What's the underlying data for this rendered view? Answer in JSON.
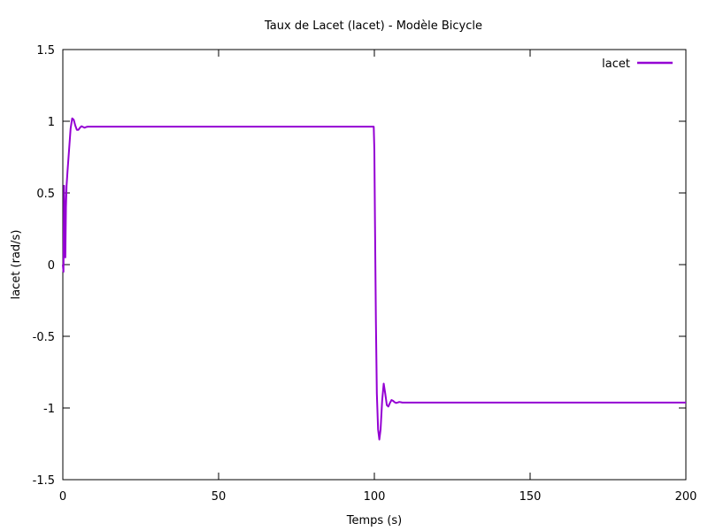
{
  "chart_data": {
    "type": "line",
    "title": "Taux de Lacet (lacet) - Modèle Bicycle",
    "xlabel": "Temps (s)",
    "ylabel": "lacet (rad/s)",
    "xlim": [
      0,
      200
    ],
    "ylim": [
      -1.5,
      1.5
    ],
    "xticks": [
      "0",
      "50",
      "100",
      "150",
      "200"
    ],
    "yticks": [
      "-1.5",
      "-1",
      "-0.5",
      "0",
      "0.5",
      "1",
      "1.5"
    ],
    "grid": false,
    "legend": "top-right",
    "series": [
      {
        "name": "lacet",
        "color": "#9400d3",
        "x": [
          0,
          0.2,
          0.4,
          0.6,
          0.8,
          1.0,
          1.2,
          1.5,
          2.0,
          2.5,
          3.0,
          3.5,
          4.0,
          4.5,
          5.0,
          5.5,
          6.0,
          6.5,
          7.0,
          7.5,
          8.0,
          8.5,
          9.0,
          10.0,
          20.0,
          50.0,
          99.8,
          100.0,
          100.2,
          100.5,
          100.8,
          101.2,
          101.6,
          102.0,
          102.5,
          103.0,
          103.5,
          104.0,
          104.5,
          105.0,
          105.5,
          106.0,
          106.5,
          107.0,
          107.5,
          108.0,
          108.5,
          109.0,
          110.0,
          120.0,
          150.0,
          200.0
        ],
        "y": [
          0,
          -0.05,
          0.55,
          0.3,
          0.05,
          0.4,
          0.55,
          0.65,
          0.8,
          0.95,
          1.02,
          1.01,
          0.97,
          0.94,
          0.94,
          0.955,
          0.965,
          0.96,
          0.955,
          0.96,
          0.962,
          0.962,
          0.962,
          0.962,
          0.962,
          0.962,
          0.962,
          0.8,
          0.3,
          -0.4,
          -0.9,
          -1.15,
          -1.22,
          -1.15,
          -0.95,
          -0.83,
          -0.9,
          -0.98,
          -0.99,
          -0.965,
          -0.945,
          -0.95,
          -0.96,
          -0.965,
          -0.962,
          -0.958,
          -0.96,
          -0.962,
          -0.962,
          -0.962,
          -0.962,
          -0.962
        ]
      }
    ]
  }
}
